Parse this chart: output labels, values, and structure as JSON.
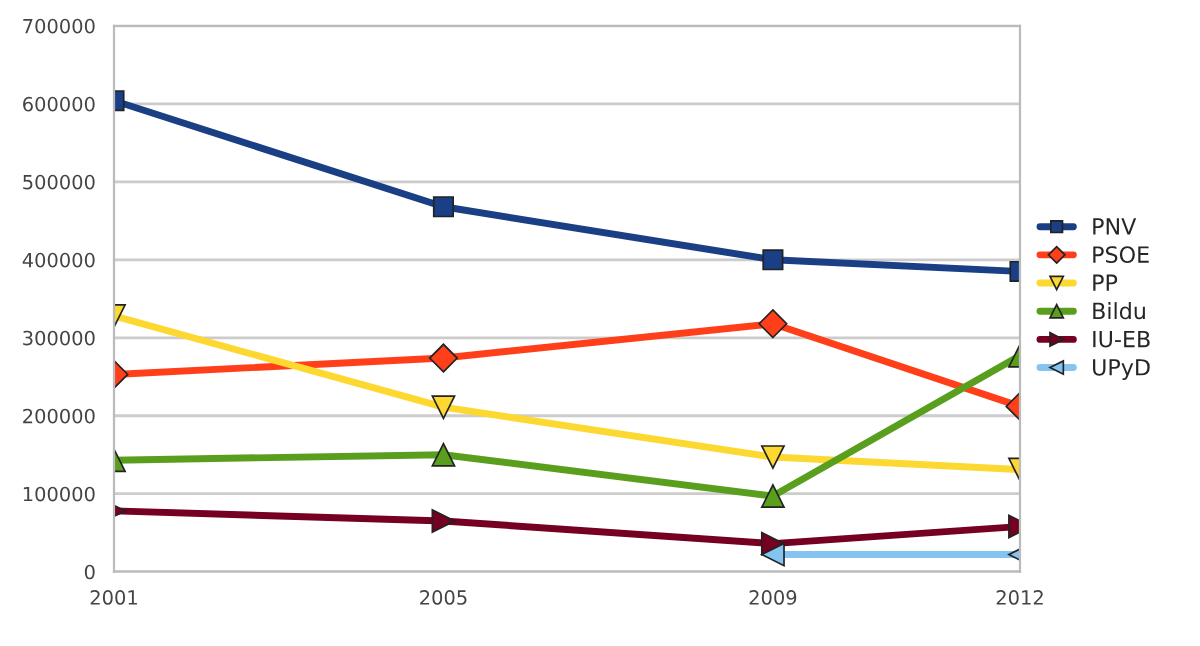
{
  "chart_data": {
    "type": "line",
    "x": [
      2001,
      2005,
      2009,
      2012
    ],
    "xlim": [
      2001,
      2012
    ],
    "xticks": [
      2001,
      2005,
      2009,
      2012
    ],
    "ylim": [
      0,
      700000
    ],
    "yticks": [
      0,
      100000,
      200000,
      300000,
      400000,
      500000,
      600000,
      700000
    ],
    "grid": "y",
    "legend": "right",
    "series": [
      {
        "name": "PNV",
        "color": "#1a3f85",
        "marker": "square",
        "values": [
          604000,
          468000,
          400000,
          385000
        ]
      },
      {
        "name": "PSOE",
        "color": "#ff3f1a",
        "marker": "diamond",
        "values": [
          253000,
          274000,
          318000,
          212000
        ]
      },
      {
        "name": "PP",
        "color": "#fcd830",
        "marker": "triangle_down",
        "values": [
          328000,
          211000,
          147000,
          131000
        ]
      },
      {
        "name": "Bildu",
        "color": "#5a9e1e",
        "marker": "triangle",
        "values": [
          143000,
          150000,
          97000,
          277000
        ]
      },
      {
        "name": "IU-EB",
        "color": "#760022",
        "marker": "triangle_right",
        "values": [
          78000,
          65000,
          36000,
          58000
        ]
      },
      {
        "name": "UPyD",
        "color": "#85c4f0",
        "marker": "triangle_left",
        "values": [
          null,
          null,
          22000,
          22000
        ]
      }
    ]
  }
}
